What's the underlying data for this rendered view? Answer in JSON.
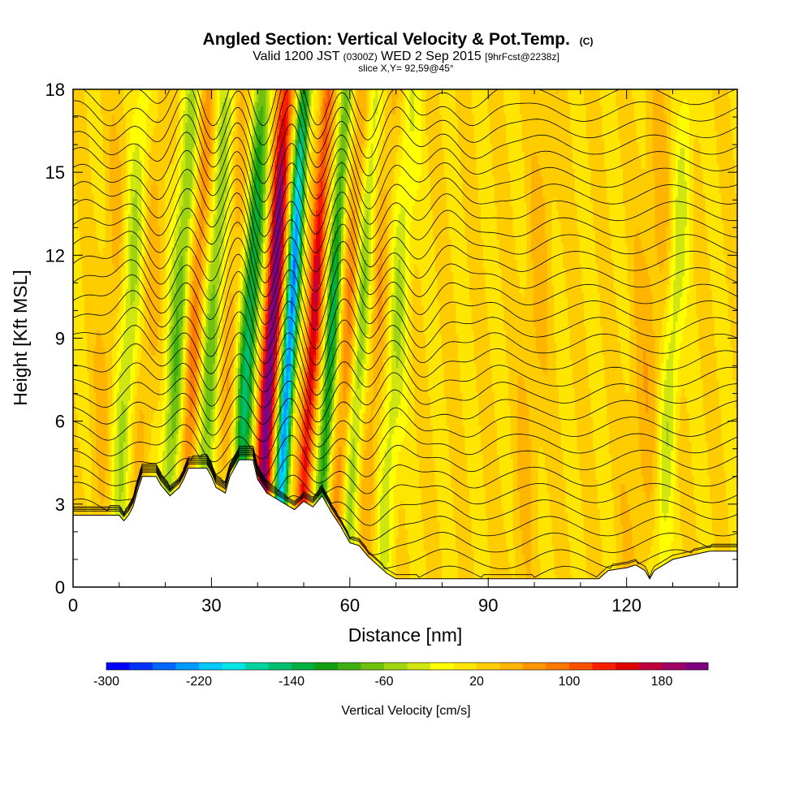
{
  "title": {
    "main": "Angled Section: Vertical Velocity & Pot.Temp.",
    "main_suffix": "(C)",
    "line2_a": "Valid 1200 JST",
    "line2_b": "(0300Z)",
    "line2_c": "WED 2 Sep 2015",
    "line2_d": "[9hrFcst@2238z]",
    "line3": "slice X,Y= 92,59@45°"
  },
  "chart_data": {
    "type": "heatmap",
    "xlabel": "Distance [nm]",
    "ylabel": "Height [Kft MSL]",
    "xlim": [
      0,
      144
    ],
    "ylim": [
      0,
      18
    ],
    "x_ticks": [
      0,
      30,
      60,
      90,
      120
    ],
    "y_ticks": [
      0,
      3,
      6,
      9,
      12,
      15,
      18
    ],
    "field": "Vertical Velocity",
    "contour_field": "Pot.Temp.",
    "contour_count": 30,
    "colorbar": {
      "title": "Vertical Velocity [cm/s]",
      "labels": [
        "-300",
        "-220",
        "-140",
        "-60",
        "20",
        "100",
        "180"
      ],
      "min": -300,
      "max": 220,
      "step": 20,
      "colors": [
        "#0000ff",
        "#0033ff",
        "#0066ff",
        "#0099ff",
        "#00c8ff",
        "#00e6e6",
        "#00d2a0",
        "#00c070",
        "#00b040",
        "#10a010",
        "#40b010",
        "#70c010",
        "#a0d410",
        "#d0e610",
        "#ffff00",
        "#ffe600",
        "#ffcc00",
        "#ffb400",
        "#ff9600",
        "#ff7800",
        "#ff5000",
        "#ff1e00",
        "#e00000",
        "#c0003c",
        "#a00064",
        "#800080"
      ]
    },
    "background_velocity": 20,
    "updraft_bands": [
      {
        "x": 8,
        "w": 3,
        "amp": 25
      },
      {
        "x": 16,
        "w": 2.4,
        "amp": 30
      },
      {
        "x": 26,
        "w": 2.4,
        "amp": 90
      },
      {
        "x": 34,
        "w": 3,
        "amp": 40
      },
      {
        "x": 43,
        "w": 1.8,
        "amp": 210
      },
      {
        "x": 52,
        "w": 1.5,
        "amp": 140
      },
      {
        "x": 60,
        "w": 2,
        "amp": 80
      },
      {
        "x": 66,
        "w": 2.4,
        "amp": 40
      },
      {
        "x": 100,
        "w": 3,
        "amp": 25
      },
      {
        "x": 125,
        "w": 4,
        "amp": 30
      }
    ],
    "downdraft_bands": [
      {
        "x": 12,
        "w": 2.4,
        "amp": 70
      },
      {
        "x": 23,
        "w": 2.4,
        "amp": 110
      },
      {
        "x": 30,
        "w": 2.4,
        "amp": 100
      },
      {
        "x": 38,
        "w": 2.1,
        "amp": 170
      },
      {
        "x": 47,
        "w": 1.5,
        "amp": 270
      },
      {
        "x": 56,
        "w": 1.5,
        "amp": 150
      },
      {
        "x": 62,
        "w": 2,
        "amp": 100
      },
      {
        "x": 70,
        "w": 2.4,
        "amp": 60
      },
      {
        "x": 130,
        "w": 2,
        "amp": 60
      }
    ],
    "terrain": [
      [
        0,
        2.6
      ],
      [
        10,
        2.6
      ],
      [
        11,
        2.4
      ],
      [
        12,
        2.6
      ],
      [
        13,
        2.9
      ],
      [
        14,
        3.5
      ],
      [
        15,
        4.0
      ],
      [
        18,
        4.0
      ],
      [
        19,
        3.7
      ],
      [
        20,
        3.5
      ],
      [
        21,
        3.3
      ],
      [
        23,
        3.6
      ],
      [
        24,
        3.9
      ],
      [
        25,
        4.3
      ],
      [
        29,
        4.3
      ],
      [
        30,
        4.0
      ],
      [
        31,
        3.6
      ],
      [
        33,
        3.4
      ],
      [
        34,
        4.0
      ],
      [
        36,
        4.6
      ],
      [
        39,
        4.6
      ],
      [
        40,
        3.9
      ],
      [
        42,
        3.4
      ],
      [
        44,
        3.2
      ],
      [
        46,
        3.0
      ],
      [
        48,
        2.8
      ],
      [
        50,
        3.1
      ],
      [
        52,
        2.9
      ],
      [
        54,
        3.3
      ],
      [
        56,
        2.7
      ],
      [
        58,
        2.2
      ],
      [
        60,
        1.6
      ],
      [
        62,
        1.5
      ],
      [
        64,
        1.1
      ],
      [
        66,
        0.8
      ],
      [
        68,
        0.5
      ],
      [
        70,
        0.3
      ],
      [
        114,
        0.3
      ],
      [
        116,
        0.6
      ],
      [
        120,
        0.7
      ],
      [
        122,
        0.8
      ],
      [
        124,
        0.6
      ],
      [
        125,
        0.3
      ],
      [
        126,
        0.6
      ],
      [
        128,
        0.8
      ],
      [
        130,
        1.0
      ],
      [
        138,
        1.3
      ],
      [
        144,
        1.3
      ]
    ]
  }
}
